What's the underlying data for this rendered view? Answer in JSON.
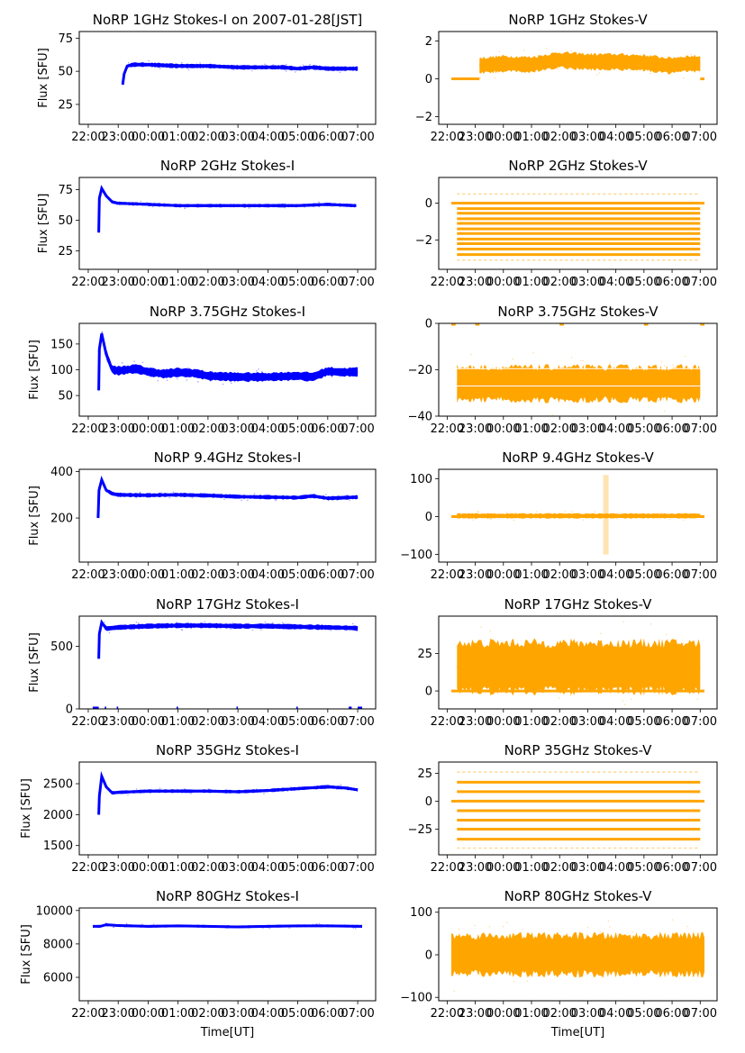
{
  "chart_data": [
    {
      "id": "p1i",
      "type": "scatter",
      "title": "NoRP 1GHz Stokes-I on 2007-01-28[JST]",
      "ylabel": "Flux [SFU]",
      "xlabel": "",
      "color": "#0000ff",
      "xlim": [
        -0.3,
        9.6
      ],
      "ylim": [
        10,
        80
      ],
      "yticks": [
        25,
        50,
        75
      ],
      "data_start": 1.15,
      "data_end": 9.0,
      "series": [
        {
          "name": "1GHz Stokes-I",
          "x": [
            1.15,
            1.2,
            1.3,
            1.5,
            2,
            3,
            4,
            5,
            6,
            6.5,
            7,
            7.5,
            8,
            8.5,
            9.0
          ],
          "y": [
            40,
            48,
            54,
            55,
            55,
            54,
            54,
            53,
            53,
            53,
            52,
            53,
            52,
            52,
            52
          ]
        }
      ],
      "band": 1.5
    },
    {
      "id": "p1v",
      "type": "scatter",
      "title": "NoRP 1GHz Stokes-V",
      "ylabel": "",
      "xlabel": "",
      "color": "#ffa500",
      "xlim": [
        -0.3,
        9.6
      ],
      "ylim": [
        -2.4,
        2.5
      ],
      "yticks": [
        -2,
        0,
        2
      ],
      "flat_segments": [
        [
          0.15,
          1.15
        ],
        [
          9.0,
          9.15
        ]
      ],
      "series": [
        {
          "name": "1GHz Stokes-V",
          "x": [
            1.15,
            2,
            3,
            4,
            5,
            6,
            7,
            7.9,
            8.5,
            9.0
          ],
          "y": [
            0.7,
            0.8,
            0.75,
            1.0,
            0.9,
            0.9,
            0.85,
            0.7,
            0.8,
            0.8
          ]
        }
      ],
      "band": 0.4
    },
    {
      "id": "p2i",
      "type": "scatter",
      "title": "NoRP 2GHz Stokes-I",
      "ylabel": "Flux [SFU]",
      "xlabel": "",
      "color": "#0000ff",
      "xlim": [
        -0.3,
        9.6
      ],
      "ylim": [
        10,
        85
      ],
      "yticks": [
        25,
        50,
        75
      ],
      "series": [
        {
          "name": "2GHz Stokes-I",
          "x": [
            0.35,
            0.37,
            0.45,
            0.6,
            0.8,
            1,
            2,
            3,
            4,
            5,
            6,
            7,
            8,
            8.9,
            8.95
          ],
          "y": [
            40,
            68,
            76,
            70,
            65,
            64,
            63,
            62,
            62,
            62,
            62,
            62,
            63,
            62,
            62
          ]
        }
      ],
      "band": 1.2
    },
    {
      "id": "p2v",
      "type": "scatter",
      "title": "NoRP 2GHz Stokes-V",
      "ylabel": "",
      "xlabel": "",
      "color": "#ffa500",
      "xlim": [
        -0.3,
        9.6
      ],
      "ylim": [
        -3.6,
        1.4
      ],
      "yticks": [
        -2,
        0
      ],
      "quantized_levels": [
        0.5,
        0,
        -0.3,
        -0.55,
        -0.85,
        -1.1,
        -1.4,
        -1.65,
        -1.95,
        -2.2,
        -2.5,
        -2.8,
        -3.1
      ],
      "series": [
        {
          "name": "2GHz Stokes-V",
          "x": [
            0.35,
            9.0
          ],
          "y": [
            -1.5,
            -1.5
          ]
        }
      ]
    },
    {
      "id": "p3i",
      "type": "scatter",
      "title": "NoRP 3.75GHz Stokes-I",
      "ylabel": "Flux [SFU]",
      "xlabel": "",
      "color": "#0000ff",
      "xlim": [
        -0.3,
        9.6
      ],
      "ylim": [
        10,
        190
      ],
      "yticks": [
        50,
        100,
        150
      ],
      "series": [
        {
          "name": "3.75GHz Stokes-I",
          "x": [
            0.35,
            0.37,
            0.45,
            0.6,
            0.8,
            1,
            1.6,
            2,
            2.5,
            3,
            3.6,
            4,
            5,
            6,
            7,
            7.5,
            8,
            8.5,
            9.0
          ],
          "y": [
            60,
            140,
            170,
            130,
            100,
            98,
            102,
            96,
            92,
            95,
            93,
            88,
            86,
            86,
            88,
            86,
            97,
            95,
            96
          ]
        }
      ],
      "band": 8
    },
    {
      "id": "p3v",
      "type": "scatter",
      "title": "NoRP 3.75GHz Stokes-V",
      "ylabel": "",
      "xlabel": "",
      "color": "#ffa500",
      "xlim": [
        -0.3,
        9.6
      ],
      "ylim": [
        -40,
        0
      ],
      "yticks": [
        -40,
        -20,
        0
      ],
      "series": [
        {
          "name": "3.75GHz Stokes-V",
          "x": [
            0.35,
            9.0
          ],
          "y": [
            -26,
            -26
          ]
        }
      ],
      "band": 7
    },
    {
      "id": "p4i",
      "type": "scatter",
      "title": "NoRP 9.4GHz Stokes-I",
      "ylabel": "Flux [SFU]",
      "xlabel": "",
      "color": "#0000ff",
      "xlim": [
        -0.3,
        9.6
      ],
      "ylim": [
        10,
        410
      ],
      "yticks": [
        200,
        400
      ],
      "series": [
        {
          "name": "9.4GHz Stokes-I",
          "x": [
            0.33,
            0.36,
            0.45,
            0.6,
            0.8,
            1,
            2,
            3,
            4,
            5,
            6,
            7,
            7.5,
            8,
            9.0
          ],
          "y": [
            200,
            320,
            365,
            320,
            305,
            300,
            298,
            300,
            297,
            292,
            290,
            288,
            295,
            285,
            290
          ]
        }
      ],
      "band": 8
    },
    {
      "id": "p4v",
      "type": "scatter",
      "title": "NoRP 9.4GHz Stokes-V",
      "ylabel": "",
      "xlabel": "",
      "color": "#ffa500",
      "xlim": [
        -0.3,
        9.6
      ],
      "ylim": [
        -120,
        125
      ],
      "yticks": [
        -100,
        0,
        100
      ],
      "series": [
        {
          "name": "9.4GHz Stokes-V",
          "x": [
            0.35,
            9.0
          ],
          "y": [
            2,
            2
          ]
        }
      ],
      "band": 6
    },
    {
      "id": "p5i",
      "type": "scatter",
      "title": "NoRP 17GHz Stokes-I",
      "ylabel": "Flux [SFU]",
      "xlabel": "",
      "color": "#0000ff",
      "xlim": [
        -0.3,
        9.6
      ],
      "ylim": [
        0,
        740
      ],
      "yticks": [
        0,
        500
      ],
      "series": [
        {
          "name": "17GHz Stokes-I",
          "x": [
            0.35,
            0.37,
            0.45,
            0.6,
            1,
            2,
            3,
            4,
            5,
            6,
            7,
            8,
            8.9,
            9.0
          ],
          "y": [
            400,
            600,
            690,
            640,
            650,
            660,
            665,
            665,
            660,
            660,
            655,
            650,
            645,
            640
          ]
        }
      ],
      "band": 18
    },
    {
      "id": "p5v",
      "type": "scatter",
      "title": "NoRP 17GHz Stokes-V",
      "ylabel": "",
      "xlabel": "",
      "color": "#ffa500",
      "xlim": [
        -0.3,
        9.6
      ],
      "ylim": [
        -12,
        50
      ],
      "yticks": [
        0,
        25
      ],
      "series": [
        {
          "name": "17GHz Stokes-V",
          "x": [
            0.35,
            9.0
          ],
          "y": [
            16,
            16
          ]
        }
      ],
      "band": 16
    },
    {
      "id": "p6i",
      "type": "scatter",
      "title": "NoRP 35GHz Stokes-I",
      "ylabel": "Flux [SFU]",
      "xlabel": "",
      "color": "#0000ff",
      "xlim": [
        -0.3,
        9.6
      ],
      "ylim": [
        1350,
        2850
      ],
      "yticks": [
        1500,
        2000,
        2500
      ],
      "series": [
        {
          "name": "35GHz Stokes-I",
          "x": [
            0.35,
            0.37,
            0.45,
            0.6,
            0.8,
            1,
            2,
            3,
            4,
            5,
            6,
            7,
            8,
            8.6,
            9.0
          ],
          "y": [
            2000,
            2300,
            2620,
            2450,
            2350,
            2360,
            2380,
            2380,
            2380,
            2370,
            2390,
            2420,
            2450,
            2430,
            2400
          ]
        }
      ],
      "band": 25
    },
    {
      "id": "p6v",
      "type": "scatter",
      "title": "NoRP 35GHz Stokes-V",
      "ylabel": "",
      "xlabel": "",
      "color": "#ffa500",
      "xlim": [
        -0.3,
        9.6
      ],
      "ylim": [
        -48,
        35
      ],
      "yticks": [
        -25,
        0,
        25
      ],
      "quantized_levels": [
        26,
        17,
        8.5,
        0,
        -8.5,
        -17,
        -25,
        -34,
        -42
      ],
      "series": [
        {
          "name": "35GHz Stokes-V",
          "x": [
            0.35,
            9.0
          ],
          "y": [
            0,
            0
          ]
        }
      ]
    },
    {
      "id": "p7i",
      "type": "scatter",
      "title": "NoRP 80GHz Stokes-I",
      "ylabel": "Flux [SFU]",
      "xlabel": "Time[UT]",
      "color": "#0000ff",
      "xlim": [
        -0.3,
        9.6
      ],
      "ylim": [
        4600,
        10150
      ],
      "yticks": [
        6000,
        8000,
        10000
      ],
      "series": [
        {
          "name": "80GHz Stokes-I",
          "x": [
            0.15,
            0.4,
            0.6,
            1,
            2,
            3,
            4,
            5,
            6,
            7,
            8,
            9.15
          ],
          "y": [
            9050,
            9050,
            9150,
            9100,
            9050,
            9080,
            9050,
            9020,
            9050,
            9080,
            9080,
            9050
          ]
        }
      ],
      "band": 70
    },
    {
      "id": "p7v",
      "type": "scatter",
      "title": "NoRP 80GHz Stokes-V",
      "ylabel": "",
      "xlabel": "Time[UT]",
      "color": "#ffa500",
      "xlim": [
        -0.3,
        9.6
      ],
      "ylim": [
        -108,
        110
      ],
      "yticks": [
        -100,
        0,
        100
      ],
      "series": [
        {
          "name": "80GHz Stokes-V",
          "x": [
            0.15,
            9.15
          ],
          "y": [
            0,
            0
          ]
        }
      ],
      "band": 45
    }
  ],
  "xaxis": {
    "ticks": [
      0,
      1,
      2,
      3,
      4,
      5,
      6,
      7,
      8,
      9
    ],
    "tick_labels": [
      "22:00",
      "23:00",
      "00:00",
      "01:00",
      "02:00",
      "03:00",
      "04:00",
      "05:00",
      "06:00",
      "07:00"
    ],
    "units": "hours since 22:00 UT"
  }
}
